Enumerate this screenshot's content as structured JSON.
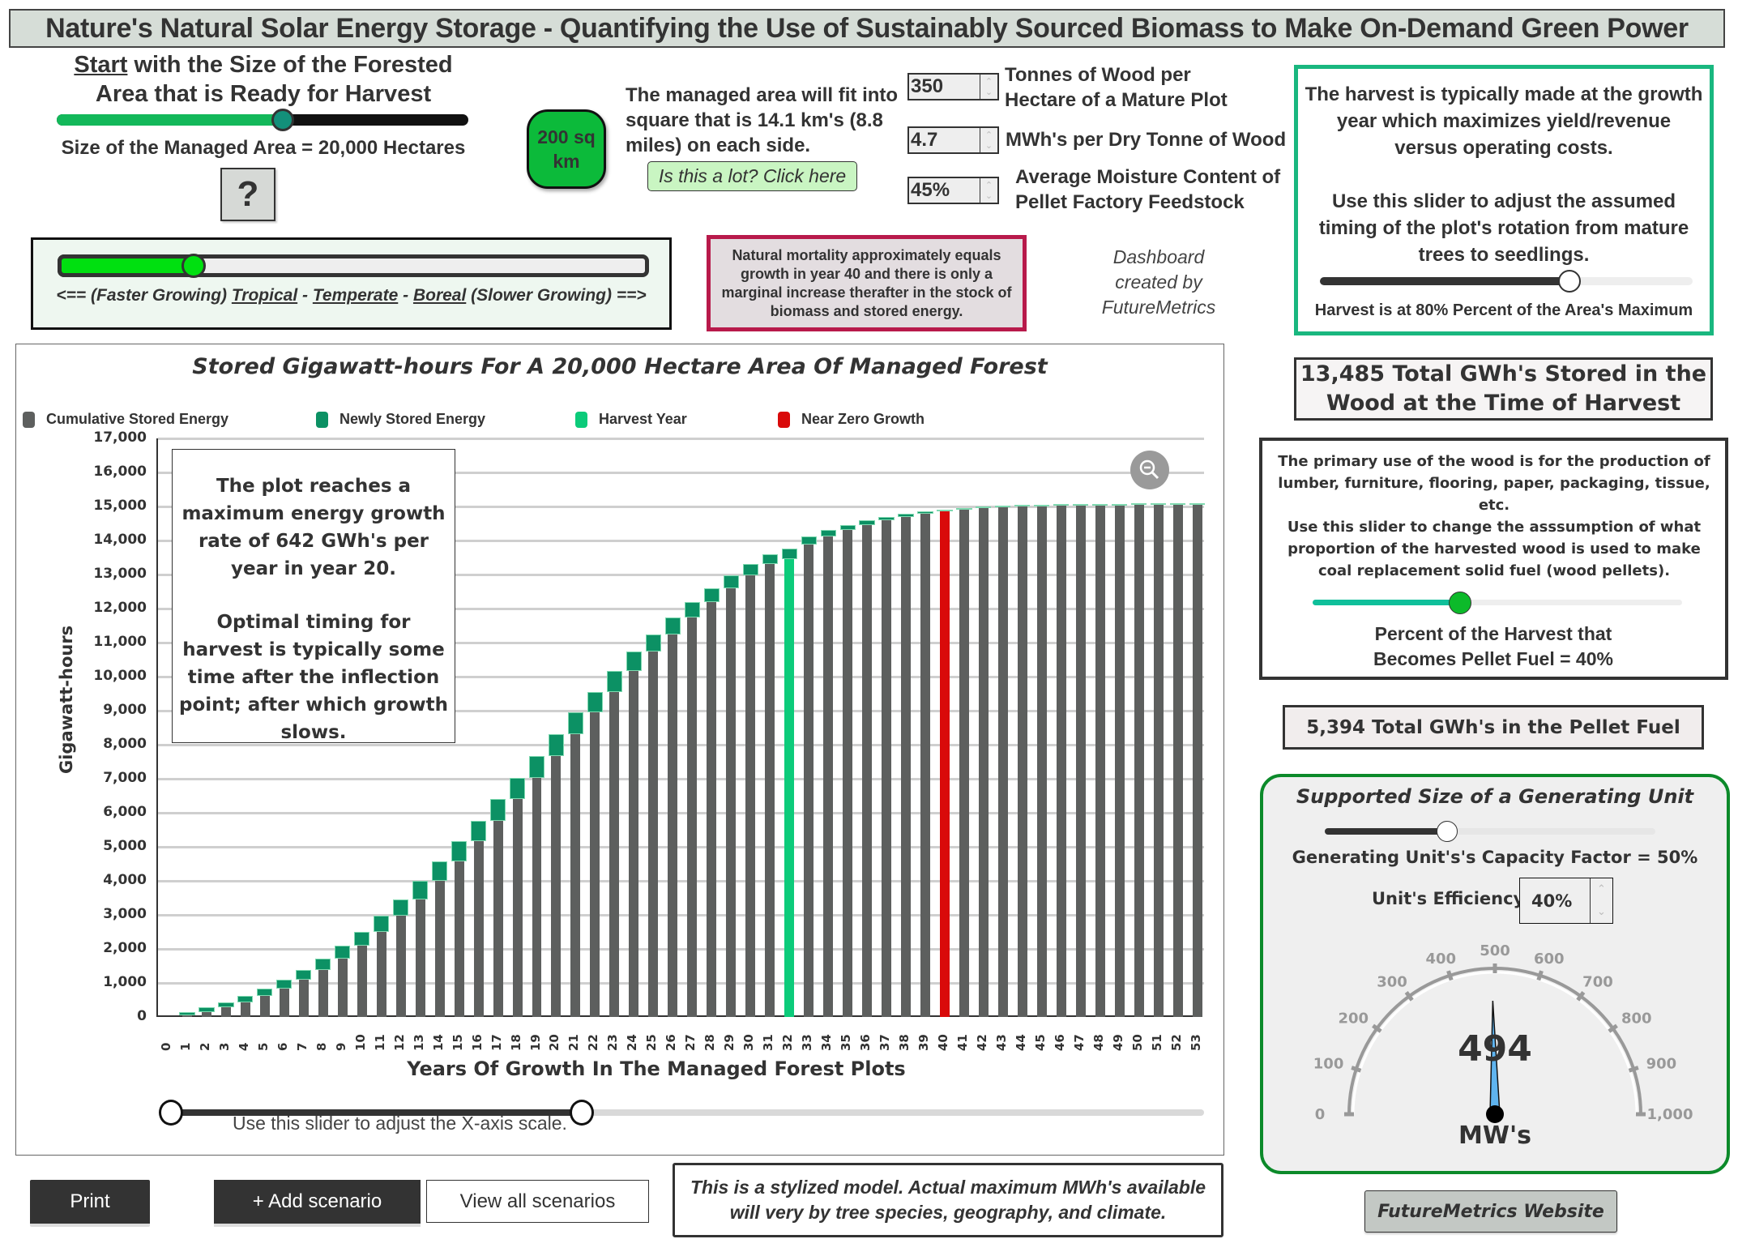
{
  "title": "Nature's Natural Solar Energy Storage - Quantifying the Use of Sustainably Sourced Biomass to Make On-Demand Green Power",
  "area": {
    "heading_start": "Start",
    "heading_line1_rest": " with the Size of the Forested",
    "heading_line2": "Area that is Ready for Harvest",
    "size_label": "Size of the Managed Area = 20,000 Hectares",
    "slider_percent": 55,
    "help_button": "?",
    "sq_km_badge": "200 sq km",
    "fit_text": "The managed area will fit into square that is 14.1 km's (8.8 miles) on each side.",
    "is_this_a_lot_button": "Is this a lot? Click here",
    "colors": {
      "slider_fill": "#13b85a",
      "slider_track": "#111111",
      "thumb": "#13907a",
      "badge": "#0cba3a",
      "lot_button": "#c9f5c2"
    }
  },
  "inputs": [
    {
      "value": "350",
      "label": "Tonnes of Wood per Hectare of a Mature Plot"
    },
    {
      "value": "4.7",
      "label": "MWh's per Dry Tonne of Wood"
    },
    {
      "value": "45%",
      "label": "Average Moisture Content of Pellet Factory Feedstock"
    }
  ],
  "climate": {
    "slider_percent": 23,
    "caption_prefix": "<== (Faster Growing) ",
    "tropical": "Tropical",
    "sep1": " - ",
    "temperate": "Temperate",
    "sep2": " - ",
    "boreal": "Boreal",
    "caption_suffix": " (Slower Growing) ==>",
    "fill_color": "#00e010"
  },
  "mortality_note": "Natural mortality approximately equals growth in year 40 and there is only a marginal increase therafter in the stock of biomass and stored energy.",
  "credit": {
    "line1": "Dashboard",
    "line2": "created by",
    "line3": "FutureMetrics"
  },
  "harvest_box": {
    "para1": "The harvest is typically made at the growth year which maximizes yield/revenue versus operating costs.",
    "para2": "Use this slider to adjust the assumed timing of the plot's rotation from mature trees to seedlings.",
    "slider_percent": 67,
    "caption": "Harvest is at 80% Percent of the Area's Maximum",
    "border_color": "#19b77f"
  },
  "total_stored": "13,485 Total GWh's Stored in the Wood at the Time of Harvest",
  "pellet_box": {
    "para1": "The primary use of the wood is for the production of lumber, furniture, flooring, paper, packaging, tissue, etc.",
    "para2": "Use this slider to change the asssumption of what proportion of the harvested wood is used to make coal replacement solid fuel (wood pellets).",
    "slider_percent": 40,
    "caption": "Percent of the Harvest that Becomes Pellet Fuel = 40%"
  },
  "pellet_total": "5,394 Total GWh's in the Pellet Fuel",
  "generator": {
    "title": "Supported Size of a Generating Unit",
    "slider_percent": 37,
    "capacity_factor": "Generating Unit's's Capacity Factor = 50%",
    "efficiency_label": "Unit's Efficiency",
    "efficiency_value": "40%",
    "gauge_value": 494,
    "gauge_value_text": "494",
    "gauge_unit": "MW's",
    "gauge_min": 0,
    "gauge_max": 1000,
    "gauge_ticks": [
      "0",
      "100",
      "200",
      "300",
      "400",
      "500",
      "600",
      "700",
      "800",
      "900",
      "1,000"
    ],
    "needle_color": "#5fb4ef"
  },
  "website_button": "FutureMetrics Website",
  "buttons": {
    "print": "Print",
    "add_scenario": "+  Add scenario",
    "view_all": "View all scenarios"
  },
  "disclaimer": "This is a stylized model. Actual maximum MWh's available will very by tree species, geography, and climate.",
  "chart": {
    "annotation_p1": "The plot reaches a maximum energy growth rate of 642 GWh's per year in year 20.",
    "annotation_p2": "Optimal timing for harvest is typically some time after the inflection point; after which growth slows.",
    "x_slider_caption": "Use this slider to adjust the X-axis scale.",
    "zoom_icon": "zoom-out-icon"
  },
  "chart_data": {
    "type": "bar",
    "title": "Stored Gigawatt-hours For A 20,000 Hectare Area Of Managed Forest",
    "xlabel": "Years Of Growth In The Managed Forest Plots",
    "ylabel": "Gigawatt-hours",
    "ylim": [
      0,
      17000
    ],
    "yticks": [
      "0",
      "1,000",
      "2,000",
      "3,000",
      "4,000",
      "5,000",
      "6,000",
      "7,000",
      "8,000",
      "9,000",
      "10,000",
      "11,000",
      "12,000",
      "13,000",
      "14,000",
      "15,000",
      "16,000",
      "17,000"
    ],
    "grid": true,
    "legend_position": "top",
    "legend": [
      {
        "name": "Cumulative Stored Energy",
        "color": "#5d5f5e"
      },
      {
        "name": "Newly Stored Energy",
        "color": "#0c9164"
      },
      {
        "name": "Harvest Year",
        "color": "#0ccb7a"
      },
      {
        "name": "Near Zero Growth",
        "color": "#d90a0a"
      }
    ],
    "categories": [
      0,
      1,
      2,
      3,
      4,
      5,
      6,
      7,
      8,
      9,
      10,
      11,
      12,
      13,
      14,
      15,
      16,
      17,
      18,
      19,
      20,
      21,
      22,
      23,
      24,
      25,
      26,
      27,
      28,
      29,
      30,
      31,
      32,
      33,
      34,
      35,
      36,
      37,
      38,
      39,
      40,
      41,
      42,
      43,
      44,
      45,
      46,
      47,
      48,
      49,
      50,
      51,
      52,
      53
    ],
    "harvest_year": 32,
    "near_zero_growth_year": 40,
    "series": [
      {
        "name": "Cumulative Stored Energy",
        "values": [
          0,
          60,
          170,
          300,
          460,
          640,
          860,
          1110,
          1400,
          1740,
          2120,
          2530,
          2990,
          3480,
          4020,
          4590,
          5180,
          5790,
          6420,
          7050,
          7690,
          8330,
          8970,
          9580,
          10180,
          10760,
          11270,
          11760,
          12210,
          12620,
          13000,
          13330,
          13485,
          13900,
          14140,
          14330,
          14480,
          14610,
          14720,
          14810,
          14880,
          14930,
          14970,
          15000,
          15020,
          15035,
          15045,
          15050,
          15055,
          15058,
          15060,
          15062,
          15064,
          15065
        ]
      },
      {
        "name": "Newly Stored Energy",
        "values": [
          0,
          110,
          130,
          160,
          180,
          220,
          250,
          290,
          340,
          380,
          410,
          460,
          490,
          540,
          570,
          590,
          610,
          630,
          630,
          640,
          642,
          640,
          610,
          600,
          580,
          510,
          490,
          450,
          410,
          380,
          330,
          300,
          290,
          240,
          190,
          150,
          130,
          110,
          90,
          70,
          50,
          40,
          30,
          20,
          15,
          10,
          5,
          5,
          3,
          2,
          2,
          2,
          1,
          1
        ]
      }
    ]
  }
}
